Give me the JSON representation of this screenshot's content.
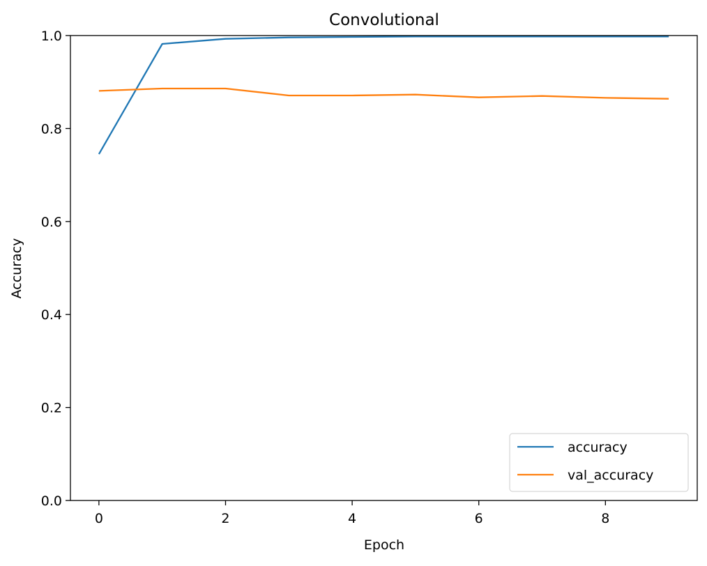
{
  "chart_data": {
    "type": "line",
    "title": "Convolutional",
    "xlabel": "Epoch",
    "ylabel": "Accuracy",
    "x": [
      0,
      1,
      2,
      3,
      4,
      5,
      6,
      7,
      8,
      9
    ],
    "xlim": [
      -0.45,
      9.45
    ],
    "ylim": [
      0.0,
      1.0
    ],
    "xticks": [
      0,
      2,
      4,
      6,
      8
    ],
    "yticks": [
      0.0,
      0.2,
      0.4,
      0.6,
      0.8,
      1.0
    ],
    "xtick_labels": [
      "0",
      "2",
      "4",
      "6",
      "8"
    ],
    "ytick_labels": [
      "0.0",
      "0.2",
      "0.4",
      "0.6",
      "0.8",
      "1.0"
    ],
    "grid": false,
    "legend_position": "lower-right",
    "series": [
      {
        "name": "accuracy",
        "color": "#1f77b4",
        "values": [
          0.745,
          0.982,
          0.993,
          0.996,
          0.997,
          0.998,
          0.998,
          0.998,
          0.998,
          0.998
        ]
      },
      {
        "name": "val_accuracy",
        "color": "#ff7f0e",
        "values": [
          0.881,
          0.886,
          0.886,
          0.871,
          0.871,
          0.873,
          0.867,
          0.87,
          0.866,
          0.864
        ]
      }
    ]
  }
}
